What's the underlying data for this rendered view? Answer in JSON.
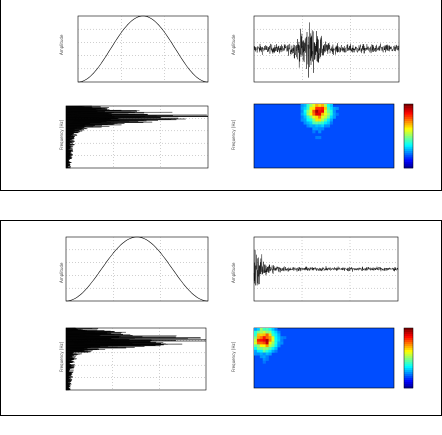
{
  "figures": [
    {
      "panels": [
        {
          "id": "window",
          "ylabel": "Amplitude",
          "type": "line"
        },
        {
          "id": "signal",
          "ylabel": "Amplitude",
          "type": "line"
        },
        {
          "id": "spectrum",
          "ylabel": "Frequency [Hz]",
          "type": "line"
        },
        {
          "id": "spectrogram",
          "ylabel": "Frequency [Hz]",
          "type": "heatmap"
        }
      ]
    },
    {
      "panels": [
        {
          "id": "window",
          "ylabel": "Amplitude",
          "type": "line"
        },
        {
          "id": "signal",
          "ylabel": "Amplitude",
          "type": "line"
        },
        {
          "id": "spectrum",
          "ylabel": "Frequency [Hz]",
          "type": "line"
        },
        {
          "id": "spectrogram",
          "ylabel": "Frequency [Hz]",
          "type": "heatmap"
        }
      ]
    }
  ],
  "chart_data": [
    {
      "type": "line",
      "title": "",
      "ylabel": "Amplitude",
      "note": "Hann window",
      "x_range": [
        0,
        1
      ],
      "y_range": [
        0,
        1
      ]
    },
    {
      "type": "line",
      "title": "",
      "ylabel": "Amplitude",
      "note": "noisy burst signal peaking mid-trace",
      "x_range": [
        0,
        1
      ],
      "y_range": [
        -1,
        1
      ]
    },
    {
      "type": "line",
      "title": "",
      "ylabel": "Frequency [Hz]",
      "note": "spectrum plotted vertically, energy concentrated at low-mid frequencies",
      "x_range": [
        0,
        1
      ],
      "y_range": [
        0,
        1
      ]
    },
    {
      "type": "heatmap",
      "title": "",
      "ylabel": "Frequency [Hz]",
      "colormap": "jet",
      "note": "hot spot near upper-left-center"
    },
    {
      "type": "line",
      "title": "",
      "ylabel": "Amplitude",
      "note": "Hann window",
      "x_range": [
        0,
        1
      ],
      "y_range": [
        0,
        1
      ]
    },
    {
      "type": "line",
      "title": "",
      "ylabel": "Amplitude",
      "note": "impulsive signal at start, decaying",
      "x_range": [
        0,
        1
      ],
      "y_range": [
        -1,
        1
      ]
    },
    {
      "type": "line",
      "title": "",
      "ylabel": "Frequency [Hz]",
      "note": "spectrum plotted vertically",
      "x_range": [
        0,
        1
      ],
      "y_range": [
        0,
        1
      ]
    },
    {
      "type": "heatmap",
      "title": "",
      "ylabel": "Frequency [Hz]",
      "colormap": "jet",
      "note": "hot spot at upper-left"
    }
  ],
  "colors": {
    "line": "#000000",
    "grid": "#888888",
    "heat_low": "#1f3fbf",
    "heat_high": "#d81f1f"
  }
}
